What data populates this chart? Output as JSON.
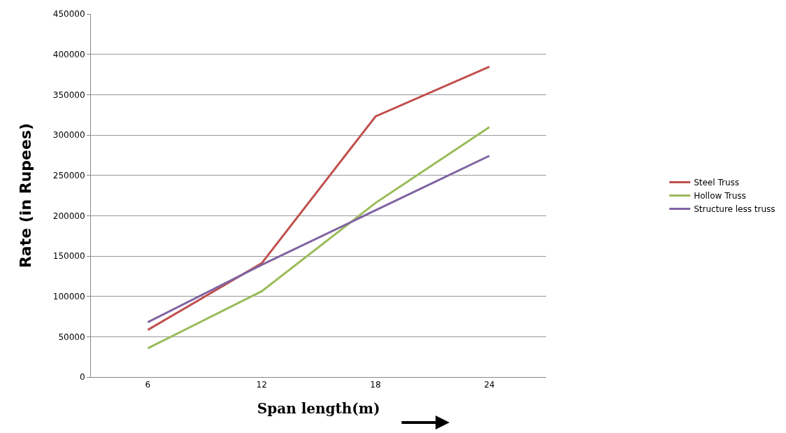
{
  "chart_data": {
    "type": "line",
    "xlabel": "Span length(m)",
    "ylabel": "Rate (in Rupees)",
    "categories": [
      "6",
      "12",
      "18",
      "24"
    ],
    "series": [
      {
        "name": "Steel Truss",
        "color": "#c0504d",
        "values": [
          58400,
          141000,
          323000,
          384600
        ]
      },
      {
        "name": "Hollow Truss",
        "color": "#9bbb59",
        "values": [
          35600,
          106300,
          215800,
          309800
        ]
      },
      {
        "name": "Structure less truss",
        "color": "#8064a2",
        "values": [
          68000,
          139100,
          206700,
          274200
        ]
      }
    ],
    "ylim": [
      0,
      450000
    ],
    "yticks": [
      0,
      50000,
      100000,
      150000,
      200000,
      250000,
      300000,
      350000,
      400000,
      450000
    ],
    "grid": "y",
    "legend": "right",
    "marker": "none",
    "line_style": "solid"
  }
}
